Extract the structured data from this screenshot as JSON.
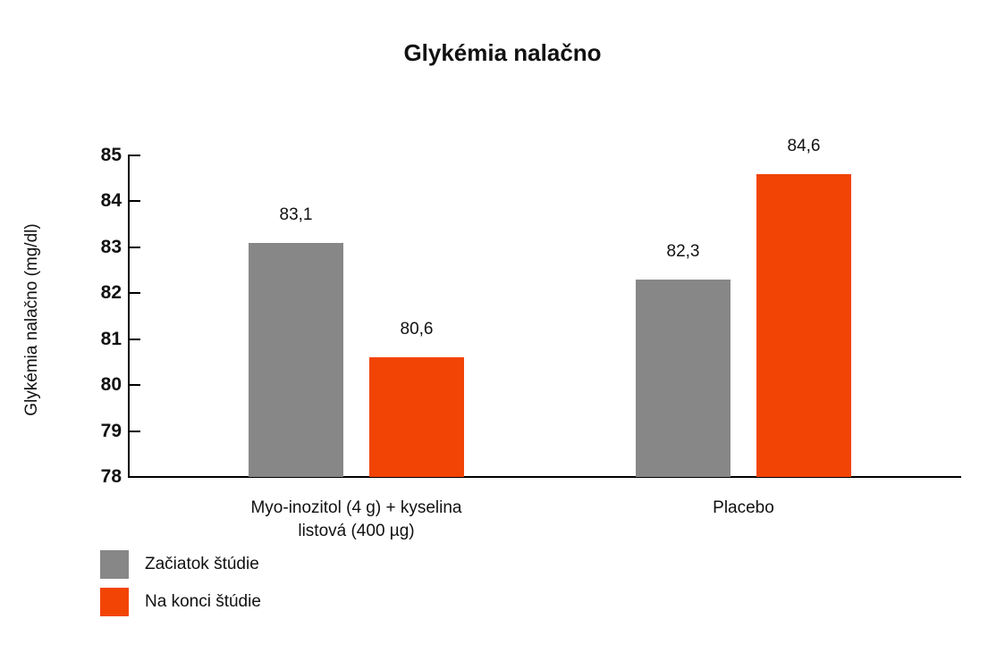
{
  "chart_data": {
    "type": "bar",
    "title": "Glykémia nalačno",
    "xlabel": "",
    "ylabel": "Glykémia nalačno (mg/dl)",
    "ylim": [
      78,
      85
    ],
    "yticks": [
      "85",
      "84",
      "83",
      "82",
      "81",
      "80",
      "79",
      "78"
    ],
    "categories": [
      "Myo-inozitol (4 g) + kyselina listová (400 µg)",
      "Placebo"
    ],
    "category_lines": [
      [
        "Myo-inozitol (4 g) + kyselina",
        "listová (400 µg)"
      ],
      [
        "Placebo"
      ]
    ],
    "series": [
      {
        "name": "Začiatok štúdie",
        "color": "#878787",
        "values": [
          83.1,
          82.3
        ],
        "labels": [
          "83,1",
          "82,3"
        ]
      },
      {
        "name": "Na konci štúdie",
        "color": "#f24405",
        "values": [
          80.6,
          84.6
        ],
        "labels": [
          "80,6",
          "84,6"
        ]
      }
    ],
    "grid": false,
    "legend_position": "bottom-left"
  }
}
